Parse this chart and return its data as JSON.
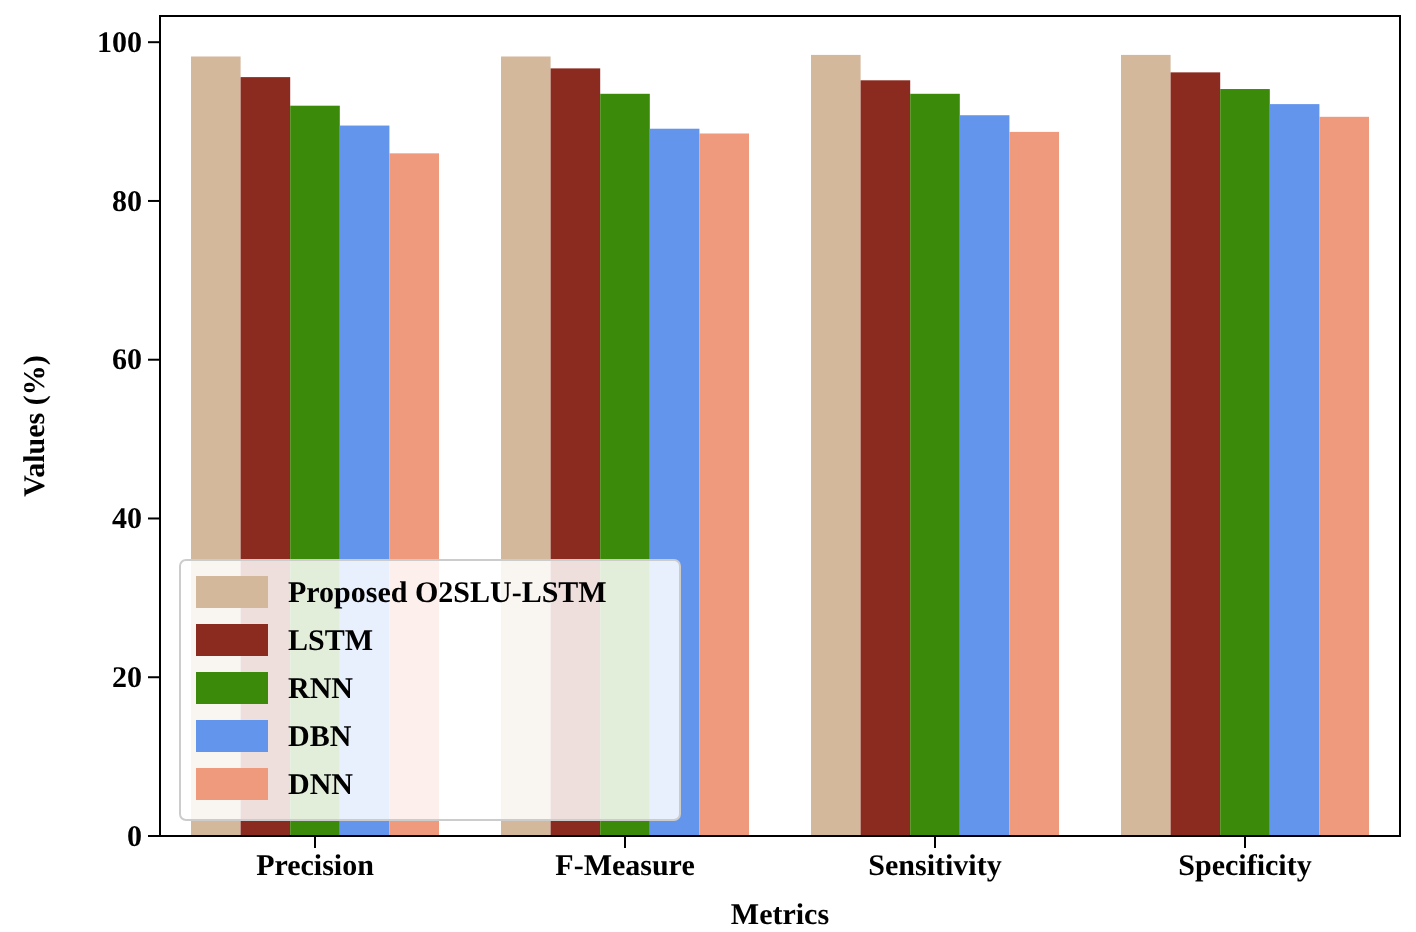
{
  "chart_data": {
    "type": "bar",
    "xlabel": "Metrics",
    "ylabel": "Values (%)",
    "categories": [
      "Precision",
      "F-Measure",
      "Sensitivity",
      "Specificity"
    ],
    "series": [
      {
        "name": "Proposed O2SLU-LSTM",
        "color": "#d4b89c",
        "values": [
          98.2,
          98.2,
          98.4,
          98.4
        ]
      },
      {
        "name": "LSTM",
        "color": "#8b2a1e",
        "values": [
          95.6,
          96.7,
          95.2,
          96.2
        ]
      },
      {
        "name": "RNN",
        "color": "#3c8a0a",
        "values": [
          92.0,
          93.5,
          93.5,
          94.1
        ]
      },
      {
        "name": "DBN",
        "color": "#6495ed",
        "values": [
          89.5,
          89.1,
          90.8,
          92.2
        ]
      },
      {
        "name": "DNN",
        "color": "#ef9a7d",
        "values": [
          86.0,
          88.5,
          88.7,
          90.6
        ]
      }
    ],
    "ylim": [
      0,
      103.3
    ],
    "yticks": [
      0,
      20,
      40,
      60,
      80,
      100
    ],
    "legend": "bottom left"
  }
}
